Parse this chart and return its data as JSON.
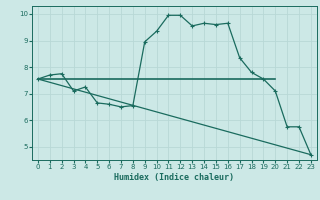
{
  "xlabel": "Humidex (Indice chaleur)",
  "ylabel": "",
  "bg_color": "#cce8e6",
  "line_color": "#1a6b5e",
  "grid_color": "#b8d8d6",
  "xlim": [
    -0.5,
    23.5
  ],
  "ylim": [
    4.5,
    10.3
  ],
  "xticks": [
    0,
    1,
    2,
    3,
    4,
    5,
    6,
    7,
    8,
    9,
    10,
    11,
    12,
    13,
    14,
    15,
    16,
    17,
    18,
    19,
    20,
    21,
    22,
    23
  ],
  "yticks": [
    5,
    6,
    7,
    8,
    9,
    10
  ],
  "line1_x": [
    0,
    1,
    2,
    3,
    4,
    5,
    6,
    7,
    8,
    9,
    10,
    11,
    12,
    13,
    14,
    15,
    16,
    17,
    18,
    19,
    20,
    21,
    22,
    23
  ],
  "line1_y": [
    7.55,
    7.7,
    7.75,
    7.1,
    7.25,
    6.65,
    6.6,
    6.5,
    6.55,
    8.95,
    9.35,
    9.95,
    9.95,
    9.55,
    9.65,
    9.6,
    9.65,
    8.35,
    7.8,
    7.55,
    7.1,
    5.75,
    5.75,
    4.7
  ],
  "line2_x": [
    0,
    20
  ],
  "line2_y": [
    7.55,
    7.55
  ],
  "line3_x": [
    0,
    23
  ],
  "line3_y": [
    7.55,
    4.7
  ]
}
